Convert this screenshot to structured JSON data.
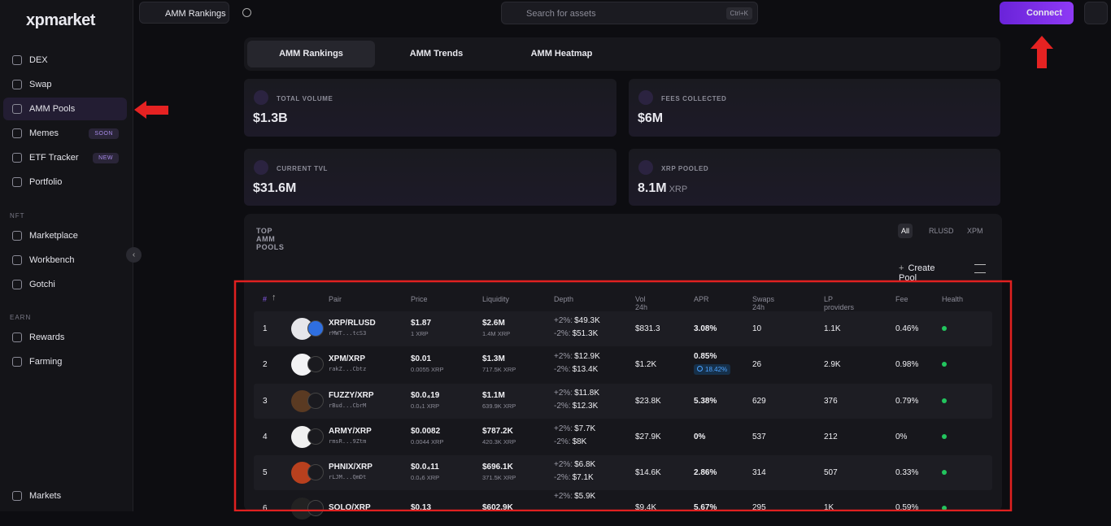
{
  "sidebar": {
    "logo": "xpmarket",
    "main_items": [
      {
        "label": "DEX"
      },
      {
        "label": "Swap"
      },
      {
        "label": "AMM Pools",
        "active": true
      },
      {
        "label": "Memes",
        "badge": "SOON"
      },
      {
        "label": "ETF Tracker",
        "badge": "NEW"
      },
      {
        "label": "Portfolio"
      }
    ],
    "nft_heading": "NFT",
    "nft_items": [
      {
        "label": "Marketplace"
      },
      {
        "label": "Workbench"
      },
      {
        "label": "Gotchi"
      }
    ],
    "earn_heading": "EARN",
    "earn_items": [
      {
        "label": "Rewards"
      },
      {
        "label": "Farming"
      }
    ],
    "footer": "Markets"
  },
  "topbar": {
    "tab": "AMM Rankings",
    "search_placeholder": "Search for assets",
    "shortcut": "Ctrl+K",
    "connect": "Connect"
  },
  "tabs": [
    "AMM Rankings",
    "AMM Trends",
    "AMM Heatmap"
  ],
  "stats": [
    {
      "label": "TOTAL VOLUME",
      "value": "$1.3B"
    },
    {
      "label": "FEES COLLECTED",
      "value": "$6M"
    },
    {
      "label": "CURRENT TVL",
      "value": "$31.6M"
    },
    {
      "label": "XRP POOLED",
      "value": "8.1M",
      "unit": "XRP"
    }
  ],
  "pools": {
    "title": "TOP AMM POOLS",
    "filters": [
      "All",
      "RLUSD",
      "XPM"
    ],
    "create": "Create Pool",
    "columns": [
      "#",
      "Pair",
      "Price",
      "Liquidity",
      "Depth",
      "Vol 24h",
      "APR",
      "Swaps 24h",
      "LP providers",
      "Fee",
      "Health"
    ],
    "depth_up_label": "+2%:",
    "depth_down_label": "-2%:",
    "rows": [
      {
        "rank": 1,
        "pair": "XRP/RLUSD",
        "address": "rMWT...tcS3",
        "price": "$1.87",
        "price_xrp": "1 XRP",
        "liquidity": "$2.6M",
        "liquidity_xrp": "1.4M XRP",
        "depth_up": "$49.3K",
        "depth_down": "$51.3K",
        "vol": "$831.3",
        "apr": "3.08%",
        "swaps": 10,
        "lp": "1.1K",
        "fee": "0.46%"
      },
      {
        "rank": 2,
        "pair": "XPM/XRP",
        "address": "rakZ...Cbtz",
        "price": "$0.01",
        "price_xrp": "0.0055 XRP",
        "liquidity": "$1.3M",
        "liquidity_xrp": "717.5K XRP",
        "depth_up": "$12.9K",
        "depth_down": "$13.4K",
        "vol": "$1.2K",
        "apr": "0.85%",
        "apr_bonus": "18.42%",
        "swaps": 26,
        "lp": "2.9K",
        "fee": "0.98%"
      },
      {
        "rank": 3,
        "pair": "FUZZY/XRP",
        "address": "rBud...CbrM",
        "price": "$0.0₄19",
        "price_xrp": "0.0₄1 XRP",
        "liquidity": "$1.1M",
        "liquidity_xrp": "639.9K XRP",
        "depth_up": "$11.8K",
        "depth_down": "$12.3K",
        "vol": "$23.8K",
        "apr": "5.38%",
        "swaps": 629,
        "lp": "376",
        "fee": "0.79%"
      },
      {
        "rank": 4,
        "pair": "ARMY/XRP",
        "address": "rmsR...9Ztm",
        "price": "$0.0082",
        "price_xrp": "0.0044 XRP",
        "liquidity": "$787.2K",
        "liquidity_xrp": "420.3K XRP",
        "depth_up": "$7.7K",
        "depth_down": "$8K",
        "vol": "$27.9K",
        "apr": "0%",
        "swaps": 537,
        "lp": "212",
        "fee": "0%"
      },
      {
        "rank": 5,
        "pair": "PHNIX/XRP",
        "address": "rLJM...QmDt",
        "price": "$0.0₄11",
        "price_xrp": "0.0₄6 XRP",
        "liquidity": "$696.1K",
        "liquidity_xrp": "371.5K XRP",
        "depth_up": "$6.8K",
        "depth_down": "$7.1K",
        "vol": "$14.6K",
        "apr": "2.86%",
        "swaps": 314,
        "lp": "507",
        "fee": "0.33%"
      },
      {
        "rank": 6,
        "pair": "SOLO/XRP",
        "price": "$0.13",
        "liquidity": "$602.9K",
        "depth_up": "$5.9K",
        "vol": "$9.4K",
        "apr": "5.67%",
        "swaps": 295,
        "lp": "1K",
        "fee": "0.59%"
      }
    ]
  }
}
